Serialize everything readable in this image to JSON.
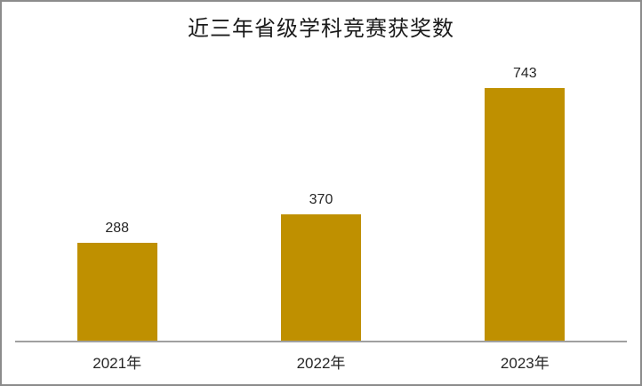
{
  "frame": {
    "background": "#ffffff",
    "border_color": "#8c8c8c"
  },
  "chart_data": {
    "type": "bar",
    "title": "近三年省级学科竞赛获奖数",
    "categories": [
      "2021年",
      "2022年",
      "2023年"
    ],
    "values": [
      288,
      370,
      743
    ],
    "data_labels": [
      288,
      370,
      743
    ],
    "xlabel": "",
    "ylabel": "",
    "ylim": [
      0,
      800
    ],
    "grid": false,
    "legend": "none",
    "bar_color": "#BF9000",
    "axis_color": "#a0a0a0",
    "text_color": "#262626",
    "title_color": "#1a1a1a"
  }
}
